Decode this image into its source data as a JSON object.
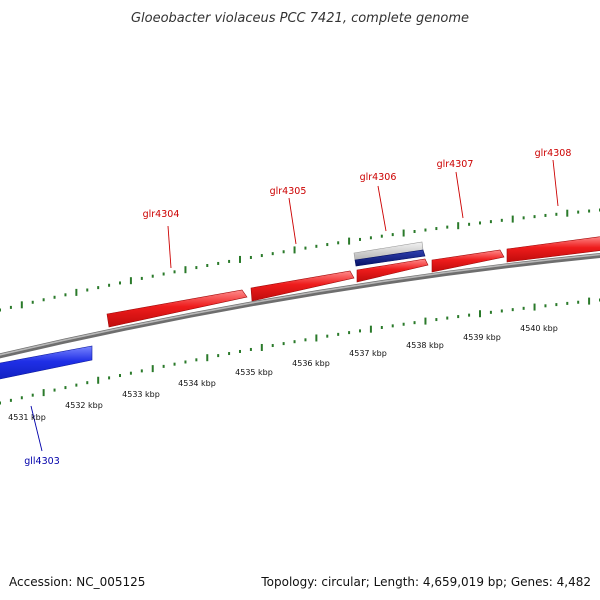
{
  "title": "Gloeobacter violaceus PCC 7421, complete genome",
  "footer": {
    "accession": "Accession: NC_005125",
    "summary": "Topology: circular; Length: 4,659,019 bp; Genes: 4,482"
  },
  "colors": {
    "forward_gene": "#e8141b",
    "reverse_gene": "#1f2fe6",
    "reverse_gene_dark": "#0a1a8c",
    "tick": "#2a7a2a",
    "backbone": "#8c8c8c",
    "forward_label": "#cc0000",
    "reverse_label": "#0000aa"
  },
  "scale": {
    "unit": "kbp",
    "ticks": [
      {
        "label": "4531 kbp"
      },
      {
        "label": "4532 kbp"
      },
      {
        "label": "4533 kbp"
      },
      {
        "label": "4534 kbp"
      },
      {
        "label": "4535 kbp"
      },
      {
        "label": "4536 kbp"
      },
      {
        "label": "4537 kbp"
      },
      {
        "label": "4538 kbp"
      },
      {
        "label": "4539 kbp"
      },
      {
        "label": "4540 kbp"
      }
    ]
  },
  "genes": [
    {
      "id": "gll4303",
      "strand": "reverse"
    },
    {
      "id": "glr4304",
      "strand": "forward"
    },
    {
      "id": "glr4305",
      "strand": "forward"
    },
    {
      "id": "glr4306",
      "strand": "forward",
      "note": "rna"
    },
    {
      "id": "glr4307",
      "strand": "forward"
    },
    {
      "id": "glr4308",
      "strand": "forward"
    }
  ]
}
